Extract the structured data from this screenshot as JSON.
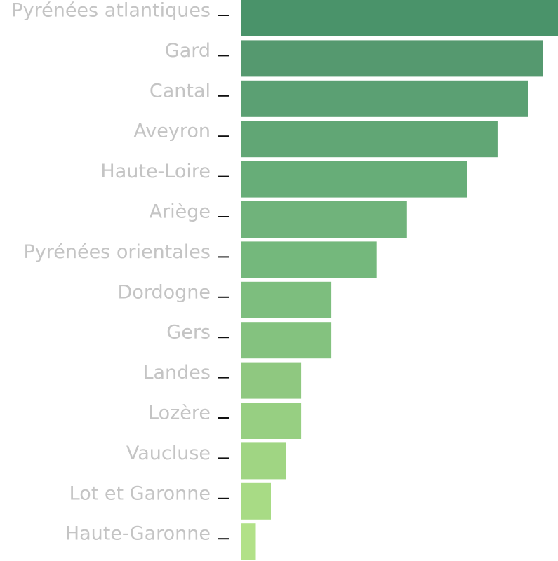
{
  "chart_data": {
    "type": "bar",
    "orientation": "horizontal",
    "title": "",
    "xlabel": "",
    "ylabel": "",
    "categories": [
      "Pyrénées atlantiques",
      "Gard",
      "Cantal",
      "Aveyron",
      "Haute-Loire",
      "Ariège",
      "Pyrénées orientales",
      "Dordogne",
      "Gers",
      "Landes",
      "Lozère",
      "Vaucluse",
      "Lot et Garonne",
      "Haute-Garonne"
    ],
    "values": [
      21,
      20,
      19,
      17,
      15,
      11,
      9,
      6,
      6,
      4,
      4,
      3,
      2,
      1
    ],
    "xlim": [
      0,
      21
    ],
    "grid": false,
    "legend": "none",
    "colors": [
      "#4a936a",
      "#55996f",
      "#5ba073",
      "#61a675",
      "#67ad78",
      "#70b37b",
      "#74b87c",
      "#7dbe7e",
      "#84c27f",
      "#8fc880",
      "#97cf82",
      "#a0d583",
      "#a8db85",
      "#b2e188"
    ],
    "tick_color": "#111111",
    "label_color": "#c4c4c4"
  }
}
